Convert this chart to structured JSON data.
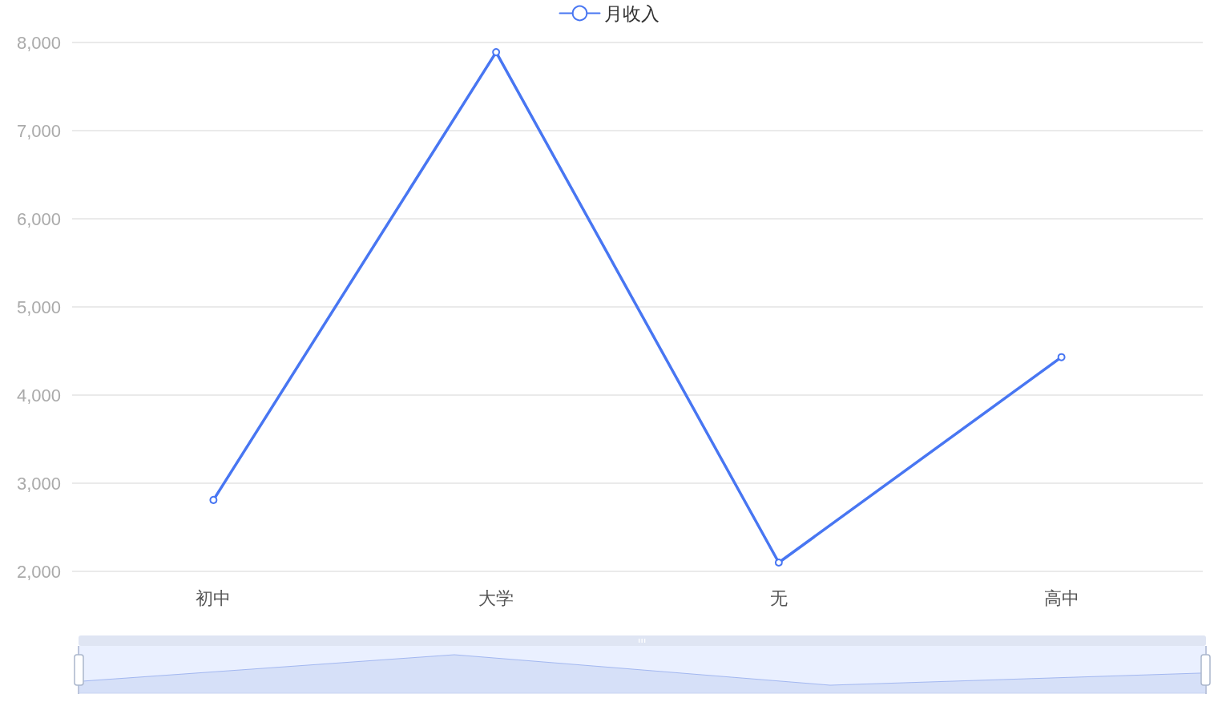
{
  "chart_data": {
    "type": "line",
    "categories": [
      "初中",
      "大学",
      "无",
      "高中"
    ],
    "series": [
      {
        "name": "月收入",
        "color": "#4876f2",
        "values": [
          2810,
          7890,
          2100,
          4430
        ]
      }
    ],
    "ylim": [
      2000,
      8000
    ],
    "yticks": [
      {
        "value": 2000,
        "label": "2,000"
      },
      {
        "value": 3000,
        "label": "3,000"
      },
      {
        "value": 4000,
        "label": "4,000"
      },
      {
        "value": 5000,
        "label": "5,000"
      },
      {
        "value": 6000,
        "label": "6,000"
      },
      {
        "value": 7000,
        "label": "7,000"
      },
      {
        "value": 8000,
        "label": "8,000"
      }
    ],
    "grid": "y",
    "legend": "top",
    "marker": "circle",
    "line_style": "solid"
  }
}
